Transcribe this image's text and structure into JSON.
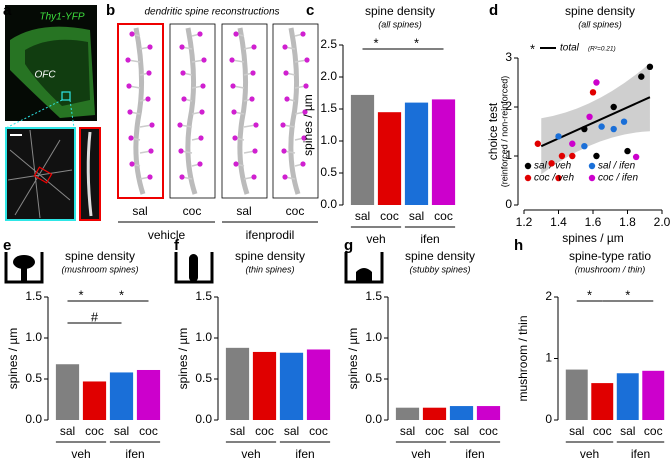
{
  "image_panels": [
    {
      "label": "a",
      "annotations": [
        "Thy1-YFP",
        "OFC"
      ]
    },
    {
      "label": "b",
      "title": "dendritic spine reconstructions",
      "categories": [
        "sal",
        "coc",
        "sal",
        "coc"
      ],
      "groups": [
        "vehicle",
        "ifenprodil"
      ]
    }
  ],
  "chart_data": [
    {
      "type": "bar",
      "label": "c",
      "title": "spine density",
      "subtitle": "(all spines)",
      "ylabel": "spines / µm",
      "categories": [
        "sal",
        "coc",
        "sal",
        "coc"
      ],
      "groups": [
        "veh",
        "ifen"
      ],
      "values": [
        1.72,
        1.45,
        1.6,
        1.65
      ],
      "colors": [
        "#808080",
        "#e00000",
        "#1a6fd8",
        "#cc00cc"
      ],
      "ylim": [
        0,
        2.5
      ],
      "yticks": [
        {
          "value": 0,
          "label": "0.0"
        },
        0.5,
        {
          "value": 1,
          "label": "1.0"
        },
        1.5,
        {
          "value": 2,
          "label": "2.0"
        },
        2.5
      ],
      "annotations": [
        "*",
        "*"
      ]
    },
    {
      "type": "scatter",
      "label": "d",
      "title": "spine density",
      "subtitle": "(all spines)",
      "xlabel": "spines / µm",
      "ylabel": [
        "choice test",
        "(reinforced / non-reinforced)"
      ],
      "xlim": [
        1.2,
        2.0
      ],
      "xticks": [
        1.2,
        1.4,
        1.6,
        1.8,
        {
          "value": 2,
          "label": "2.0"
        }
      ],
      "ylim": [
        0,
        3
      ],
      "yticks": [
        0,
        1,
        2,
        3
      ],
      "series": [
        {
          "name": "sal / veh",
          "color": "#000000",
          "x": [
            1.55,
            1.62,
            1.72,
            1.88,
            1.93,
            1.8
          ],
          "values": [
            1.55,
            1.0,
            2.0,
            2.62,
            2.82,
            1.1
          ]
        },
        {
          "name": "coc / veh",
          "color": "#e00000",
          "x": [
            1.28,
            1.36,
            1.42,
            1.48,
            1.4,
            1.6
          ],
          "values": [
            1.25,
            0.85,
            1.0,
            1.0,
            0.55,
            2.3
          ]
        },
        {
          "name": "sal / ifen",
          "color": "#1a6fd8",
          "x": [
            1.4,
            1.55,
            1.65,
            1.72,
            1.78
          ],
          "values": [
            1.4,
            1.2,
            1.6,
            1.55,
            1.7
          ]
        },
        {
          "name": "coc / ifen",
          "color": "#cc00cc",
          "x": [
            1.48,
            1.58,
            1.62,
            1.85
          ],
          "values": [
            1.25,
            1.8,
            2.5,
            0.98
          ]
        }
      ],
      "fit": {
        "name": "total",
        "color": "#000000",
        "x": [
          1.3,
          1.93
        ],
        "values": [
          1.2,
          2.2
        ]
      },
      "annotations": [
        "*",
        "(R²=0.21)"
      ]
    },
    {
      "type": "bar",
      "label": "e",
      "title": "spine density",
      "subtitle": "(mushroom spines)",
      "ylabel": "spines / µm",
      "categories": [
        "sal",
        "coc",
        "sal",
        "coc"
      ],
      "groups": [
        "veh",
        "ifen"
      ],
      "values": [
        0.68,
        0.47,
        0.58,
        0.61
      ],
      "colors": [
        "#808080",
        "#e00000",
        "#1a6fd8",
        "#cc00cc"
      ],
      "ylim": [
        0,
        1.5
      ],
      "yticks": [
        {
          "value": 0,
          "label": "0.0"
        },
        0.5,
        {
          "value": 1,
          "label": "1.0"
        },
        1.5
      ],
      "annotations": [
        "*",
        "*",
        "#"
      ]
    },
    {
      "type": "bar",
      "label": "f",
      "title": "spine density",
      "subtitle": "(thin spines)",
      "ylabel": "spines / µm",
      "categories": [
        "sal",
        "coc",
        "sal",
        "coc"
      ],
      "groups": [
        "veh",
        "ifen"
      ],
      "values": [
        0.88,
        0.83,
        0.82,
        0.86
      ],
      "colors": [
        "#808080",
        "#e00000",
        "#1a6fd8",
        "#cc00cc"
      ],
      "ylim": [
        0,
        1.5
      ],
      "yticks": [
        {
          "value": 0,
          "label": "0.0"
        },
        0.5,
        {
          "value": 1,
          "label": "1.0"
        },
        1.5
      ]
    },
    {
      "type": "bar",
      "label": "g",
      "title": "spine density",
      "subtitle": "(stubby spines)",
      "ylabel": "spines / µm",
      "categories": [
        "sal",
        "coc",
        "sal",
        "coc"
      ],
      "groups": [
        "veh",
        "ifen"
      ],
      "values": [
        0.15,
        0.15,
        0.17,
        0.17
      ],
      "colors": [
        "#808080",
        "#e00000",
        "#1a6fd8",
        "#cc00cc"
      ],
      "ylim": [
        0,
        1.5
      ],
      "yticks": [
        {
          "value": 0,
          "label": "0.0"
        },
        0.5,
        {
          "value": 1,
          "label": "1.0"
        },
        1.5
      ]
    },
    {
      "type": "bar",
      "label": "h",
      "title": "spine-type ratio",
      "subtitle": "(mushroom / thin)",
      "ylabel": "mushroom / thin",
      "categories": [
        "sal",
        "coc",
        "sal",
        "coc"
      ],
      "groups": [
        "veh",
        "ifen"
      ],
      "values": [
        0.82,
        0.6,
        0.76,
        0.8
      ],
      "colors": [
        "#808080",
        "#e00000",
        "#1a6fd8",
        "#cc00cc"
      ],
      "ylim": [
        0,
        2
      ],
      "yticks": [
        0,
        1,
        2
      ],
      "annotations": [
        "*",
        "*"
      ]
    }
  ]
}
